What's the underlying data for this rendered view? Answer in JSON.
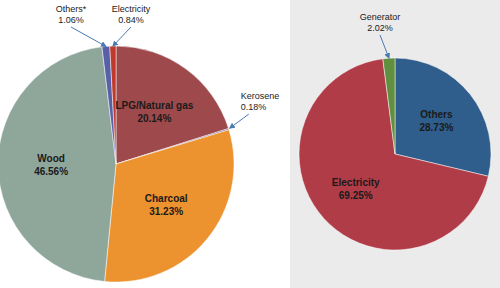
{
  "chart_data": [
    {
      "type": "pie",
      "categories": [
        "LPG/Natural gas",
        "Kerosene",
        "Charcoal",
        "Wood",
        "Others*",
        "Electricity"
      ],
      "values": [
        20.14,
        0.18,
        31.23,
        46.56,
        1.06,
        0.84
      ],
      "value_labels": [
        "20.14%",
        "0.18%",
        "31.23%",
        "46.56%",
        "1.06%",
        "0.84%"
      ],
      "colors": [
        "#9e4a4c",
        "#8064a2",
        "#ec922e",
        "#8fa69b",
        "#5860a8",
        "#c0392b"
      ],
      "data_labels": true
    },
    {
      "type": "pie",
      "categories": [
        "Others",
        "Electricity",
        "Generator"
      ],
      "values": [
        28.73,
        69.25,
        2.02
      ],
      "value_labels": [
        "28.73%",
        "69.25%",
        "2.02%"
      ],
      "colors": [
        "#2f5d8c",
        "#b03c48",
        "#5f8f3f"
      ],
      "data_labels": true
    }
  ]
}
